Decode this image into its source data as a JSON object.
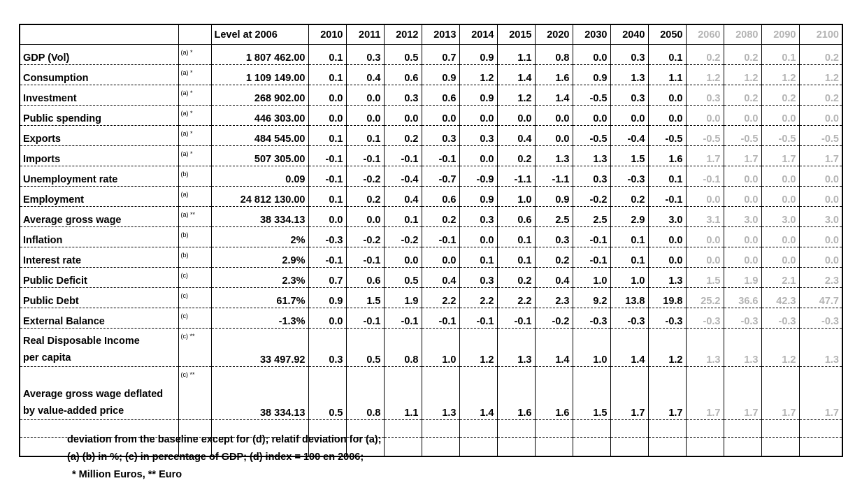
{
  "header": {
    "label_col": "",
    "note_col": "",
    "level_col": "Level at 2006",
    "years": [
      "2010",
      "2011",
      "2012",
      "2013",
      "2014",
      "2015",
      "2020",
      "2030",
      "2040",
      "2050",
      "2060",
      "2080",
      "2090",
      "2100"
    ],
    "gray_from_index": 10
  },
  "rows": [
    {
      "name": "GDP (Vol)",
      "note": "(a) *",
      "level": "1 807 462.00",
      "values": [
        "0.1",
        "0.3",
        "0.5",
        "0.7",
        "0.9",
        "1.1",
        "0.8",
        "0.0",
        "0.3",
        "0.1",
        "0.2",
        "0.2",
        "0.1",
        "0.2"
      ]
    },
    {
      "name": "Consumption",
      "note": "(a) *",
      "level": "1 109 149.00",
      "values": [
        "0.1",
        "0.4",
        "0.6",
        "0.9",
        "1.2",
        "1.4",
        "1.6",
        "0.9",
        "1.3",
        "1.1",
        "1.2",
        "1.2",
        "1.2",
        "1.2"
      ]
    },
    {
      "name": "Investment",
      "note": "(a) *",
      "level": "268 902.00",
      "values": [
        "0.0",
        "0.0",
        "0.3",
        "0.6",
        "0.9",
        "1.2",
        "1.4",
        "-0.5",
        "0.3",
        "0.0",
        "0.3",
        "0.2",
        "0.2",
        "0.2"
      ]
    },
    {
      "name": "Public spending",
      "note": "(a) *",
      "level": "446 303.00",
      "values": [
        "0.0",
        "0.0",
        "0.0",
        "0.0",
        "0.0",
        "0.0",
        "0.0",
        "0.0",
        "0.0",
        "0.0",
        "0.0",
        "0.0",
        "0.0",
        "0.0"
      ]
    },
    {
      "name": "Exports",
      "note": "(a) *",
      "level": "484 545.00",
      "values": [
        "0.1",
        "0.1",
        "0.2",
        "0.3",
        "0.3",
        "0.4",
        "0.0",
        "-0.5",
        "-0.4",
        "-0.5",
        "-0.5",
        "-0.5",
        "-0.5",
        "-0.5"
      ]
    },
    {
      "name": "Imports",
      "note": "(a) *",
      "level": "507 305.00",
      "values": [
        "-0.1",
        "-0.1",
        "-0.1",
        "-0.1",
        "0.0",
        "0.2",
        "1.3",
        "1.3",
        "1.5",
        "1.6",
        "1.7",
        "1.7",
        "1.7",
        "1.7"
      ]
    },
    {
      "name": "Unemployment rate",
      "note": "(b)",
      "level": "0.09",
      "values": [
        "-0.1",
        "-0.2",
        "-0.4",
        "-0.7",
        "-0.9",
        "-1.1",
        "-1.1",
        "0.3",
        "-0.3",
        "0.1",
        "-0.1",
        "0.0",
        "0.0",
        "0.0"
      ]
    },
    {
      "name": "Employment",
      "note": "(a)",
      "level": "24 812 130.00",
      "values": [
        "0.1",
        "0.2",
        "0.4",
        "0.6",
        "0.9",
        "1.0",
        "0.9",
        "-0.2",
        "0.2",
        "-0.1",
        "0.0",
        "0.0",
        "0.0",
        "0.0"
      ]
    },
    {
      "name": "Average gross wage",
      "note": "(a) **",
      "level": "38 334.13",
      "values": [
        "0.0",
        "0.0",
        "0.1",
        "0.2",
        "0.3",
        "0.6",
        "2.5",
        "2.5",
        "2.9",
        "3.0",
        "3.1",
        "3.0",
        "3.0",
        "3.0"
      ]
    },
    {
      "name": "Inflation",
      "note": "(b)",
      "level": "2%",
      "values": [
        "-0.3",
        "-0.2",
        "-0.2",
        "-0.1",
        "0.0",
        "0.1",
        "0.3",
        "-0.1",
        "0.1",
        "0.0",
        "0.0",
        "0.0",
        "0.0",
        "0.0"
      ]
    },
    {
      "name": "Interest rate",
      "note": "(b)",
      "level": "2.9%",
      "values": [
        "-0.1",
        "-0.1",
        "0.0",
        "0.0",
        "0.1",
        "0.1",
        "0.2",
        "-0.1",
        "0.1",
        "0.0",
        "0.0",
        "0.0",
        "0.0",
        "0.0"
      ]
    },
    {
      "name": "Public Deficit",
      "note": "(c)",
      "level": "2.3%",
      "values": [
        "0.7",
        "0.6",
        "0.5",
        "0.4",
        "0.3",
        "0.2",
        "0.4",
        "1.0",
        "1.0",
        "1.3",
        "1.5",
        "1.9",
        "2.1",
        "2.3"
      ]
    },
    {
      "name": "Public Debt",
      "note": "(c)",
      "level": "61.7%",
      "values": [
        "0.9",
        "1.5",
        "1.9",
        "2.2",
        "2.2",
        "2.2",
        "2.3",
        "9.2",
        "13.8",
        "19.8",
        "25.2",
        "36.6",
        "42.3",
        "47.7"
      ]
    },
    {
      "name": "External Balance",
      "note": "(c)",
      "level": "-1.3%",
      "values": [
        "0.0",
        "-0.1",
        "-0.1",
        "-0.1",
        "-0.1",
        "-0.1",
        "-0.2",
        "-0.3",
        "-0.3",
        "-0.3",
        "-0.3",
        "-0.3",
        "-0.3",
        "-0.3"
      ]
    },
    {
      "name_line1": "Real Disposable Income",
      "name_line2": "per capita",
      "note": "(c) **",
      "level": "33 497.92",
      "values": [
        "0.3",
        "0.5",
        "0.8",
        "1.0",
        "1.2",
        "1.3",
        "1.4",
        "1.0",
        "1.4",
        "1.2",
        "1.3",
        "1.3",
        "1.2",
        "1.3"
      ]
    },
    {
      "name_line1": "Average gross wage deflated",
      "name_line2": "by value-added price",
      "note": "(c) **",
      "level": "38 334.13",
      "values": [
        "0.5",
        "0.8",
        "1.1",
        "1.3",
        "1.4",
        "1.6",
        "1.6",
        "1.5",
        "1.7",
        "1.7",
        "1.7",
        "1.7",
        "1.7",
        "1.7"
      ]
    }
  ],
  "footnotes": {
    "line1": "deviation from the baseline except for (d); relatif deviation for (a);",
    "line2": "(a) (b) in %; (c) in percentage of GDP; (d) index = 100 en 2006;",
    "line3": "* Million Euros, ** Euro"
  }
}
